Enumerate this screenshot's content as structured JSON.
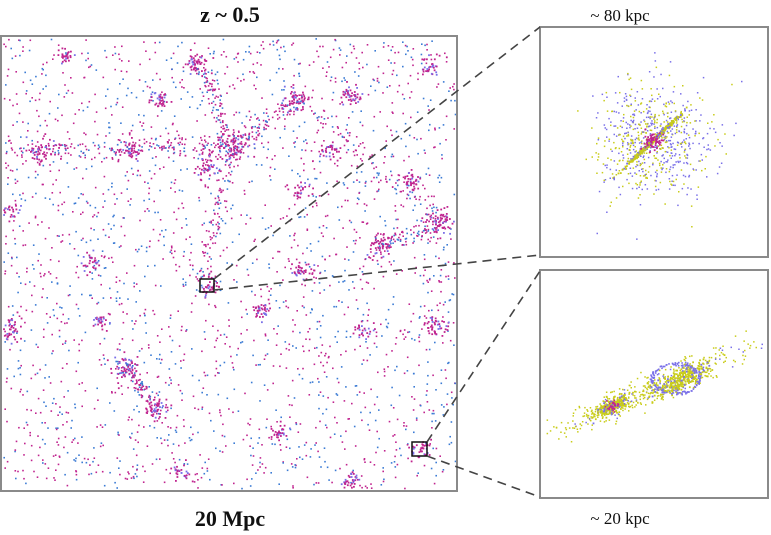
{
  "title": "z ~ 0.5",
  "scale_label": "20 Mpc",
  "inset_top": {
    "scale_label": "~ 80 kpc"
  },
  "inset_bottom": {
    "scale_label": "~ 20 kpc"
  },
  "colors": {
    "dark_matter": "#c0248f",
    "gas": "#3b7bd4",
    "stars_blue": "#7a70e8",
    "stars_yellow": "#c9cc1a",
    "frame": "#8a8a8a"
  }
}
